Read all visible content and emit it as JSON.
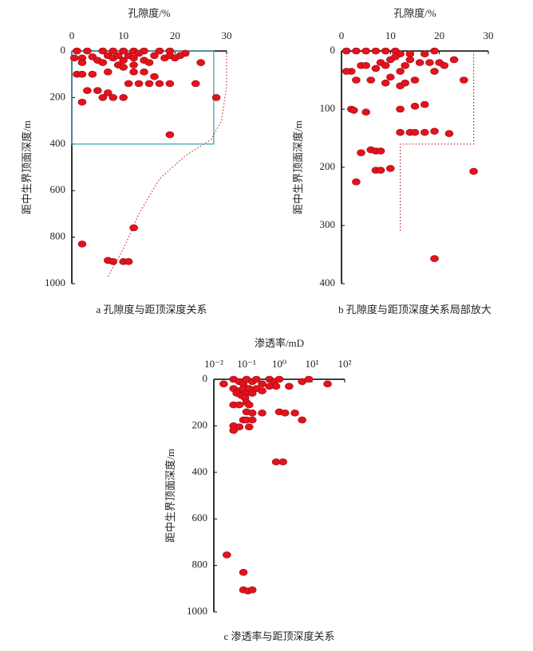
{
  "chart_data": [
    {
      "type": "scatter",
      "title": "孔隙度/%",
      "y_label": "距中生界顶面深度/m",
      "caption": "a  孔隙度与距顶深度关系",
      "color": "#e3121c",
      "xlim": [
        0,
        30
      ],
      "ylim": [
        0,
        1000
      ],
      "xticks": [
        0,
        10,
        20,
        30
      ],
      "yticks": [
        0,
        200,
        400,
        600,
        800,
        1000
      ],
      "log_x": false,
      "region": {
        "color": "#2aa2b3",
        "x": [
          0,
          27.5
        ],
        "y": [
          0,
          400
        ]
      },
      "curve": {
        "color": "#d03030",
        "x": [
          30,
          30,
          29,
          27,
          22,
          17,
          13,
          10,
          7
        ],
        "y": [
          20,
          150,
          300,
          380,
          450,
          550,
          700,
          850,
          970
        ]
      },
      "x": [
        1,
        3,
        6,
        8,
        10,
        12,
        14,
        17,
        19,
        22,
        0.5,
        2,
        4,
        5,
        7,
        8,
        9,
        10,
        11,
        12,
        13,
        14,
        16,
        18,
        19,
        20,
        21,
        25,
        2,
        6,
        9,
        12,
        15,
        1,
        2,
        4,
        7,
        10,
        12,
        14,
        16,
        13,
        15,
        17,
        19,
        11,
        24,
        3,
        5,
        6,
        7,
        8,
        10,
        2,
        28,
        19,
        12,
        2,
        7,
        8,
        10,
        11
      ],
      "values": [
        0,
        0,
        0,
        0,
        0,
        0,
        0,
        0,
        0,
        10,
        30,
        30,
        25,
        40,
        20,
        30,
        20,
        40,
        20,
        30,
        10,
        40,
        20,
        30,
        20,
        30,
        20,
        50,
        50,
        50,
        60,
        60,
        50,
        100,
        100,
        100,
        90,
        70,
        90,
        90,
        110,
        140,
        140,
        140,
        140,
        140,
        140,
        170,
        170,
        200,
        180,
        200,
        200,
        220,
        200,
        360,
        760,
        830,
        900,
        905,
        905,
        905
      ]
    },
    {
      "type": "scatter",
      "title": "孔隙度/%",
      "y_label": "距中生界顶面深度/m",
      "caption": "b  孔隙度与距顶深度关系局部放大",
      "color": "#e3121c",
      "xlim": [
        0,
        30
      ],
      "ylim": [
        0,
        400
      ],
      "xticks": [
        0,
        10,
        20,
        30
      ],
      "yticks": [
        0,
        100,
        200,
        300,
        400
      ],
      "log_x": false,
      "curve": {
        "color": "#b02020",
        "x": [
          27,
          27,
          12,
          12
        ],
        "y": [
          0,
          160,
          160,
          310
        ]
      },
      "x": [
        1,
        3,
        5,
        7,
        9,
        11,
        12,
        14,
        17,
        19,
        2,
        1,
        4,
        5,
        7,
        8,
        9,
        10,
        11,
        12,
        13,
        14,
        16,
        18,
        19,
        20,
        21,
        23,
        25,
        3,
        6,
        9,
        10,
        12,
        13,
        15,
        2,
        2.5,
        5,
        12,
        15,
        17,
        12,
        14,
        15,
        17,
        19,
        22,
        4,
        6,
        7,
        8,
        7,
        8,
        10,
        3,
        27,
        19
      ],
      "values": [
        0,
        0,
        0,
        0,
        0,
        0,
        5,
        5,
        5,
        0,
        35,
        35,
        25,
        25,
        30,
        20,
        25,
        15,
        10,
        35,
        25,
        15,
        20,
        20,
        35,
        20,
        25,
        15,
        50,
        50,
        50,
        55,
        45,
        60,
        55,
        50,
        100,
        102,
        105,
        100,
        95,
        92,
        140,
        140,
        140,
        140,
        138,
        142,
        175,
        170,
        172,
        172,
        205,
        205,
        202,
        225,
        207,
        357
      ]
    },
    {
      "type": "scatter",
      "title": "渗透率/mD",
      "y_label": "距中生界顶面深度/m",
      "caption": "c  渗透率与距顶深度关系",
      "color": "#e3121c",
      "xlim": [
        0.01,
        100
      ],
      "ylim": [
        0,
        1000
      ],
      "log_x": true,
      "xticks": [
        {
          "value": 0.01,
          "label": "10⁻²"
        },
        {
          "value": 0.1,
          "label": "10⁻¹"
        },
        {
          "value": 1,
          "label": "10⁰"
        },
        {
          "value": 10,
          "label": "10¹"
        },
        {
          "value": 100,
          "label": "10²"
        }
      ],
      "yticks": [
        0,
        200,
        400,
        600,
        800,
        1000
      ],
      "x": [
        0.02,
        0.04,
        0.06,
        0.08,
        0.1,
        0.15,
        0.2,
        0.3,
        0.5,
        0.7,
        1,
        2,
        5,
        8,
        30,
        0.04,
        0.06,
        0.08,
        0.1,
        0.12,
        0.15,
        0.2,
        0.3,
        0.5,
        0.8,
        0.05,
        0.07,
        0.09,
        0.1,
        0.12,
        0.04,
        0.06,
        0.1,
        0.15,
        0.3,
        1,
        1.5,
        3,
        5,
        0.08,
        0.1,
        0.15,
        0.04,
        0.06,
        0.12,
        0.04,
        0.8,
        1.3,
        0.025,
        0.08,
        0.08,
        0.11,
        0.15
      ],
      "values": [
        20,
        0,
        10,
        20,
        0,
        10,
        0,
        20,
        0,
        10,
        0,
        30,
        10,
        0,
        20,
        40,
        50,
        40,
        60,
        40,
        60,
        40,
        50,
        30,
        30,
        60,
        70,
        80,
        100,
        110,
        110,
        110,
        140,
        145,
        145,
        140,
        145,
        145,
        175,
        175,
        175,
        175,
        200,
        205,
        205,
        220,
        355,
        355,
        755,
        830,
        905,
        910,
        905
      ]
    }
  ]
}
